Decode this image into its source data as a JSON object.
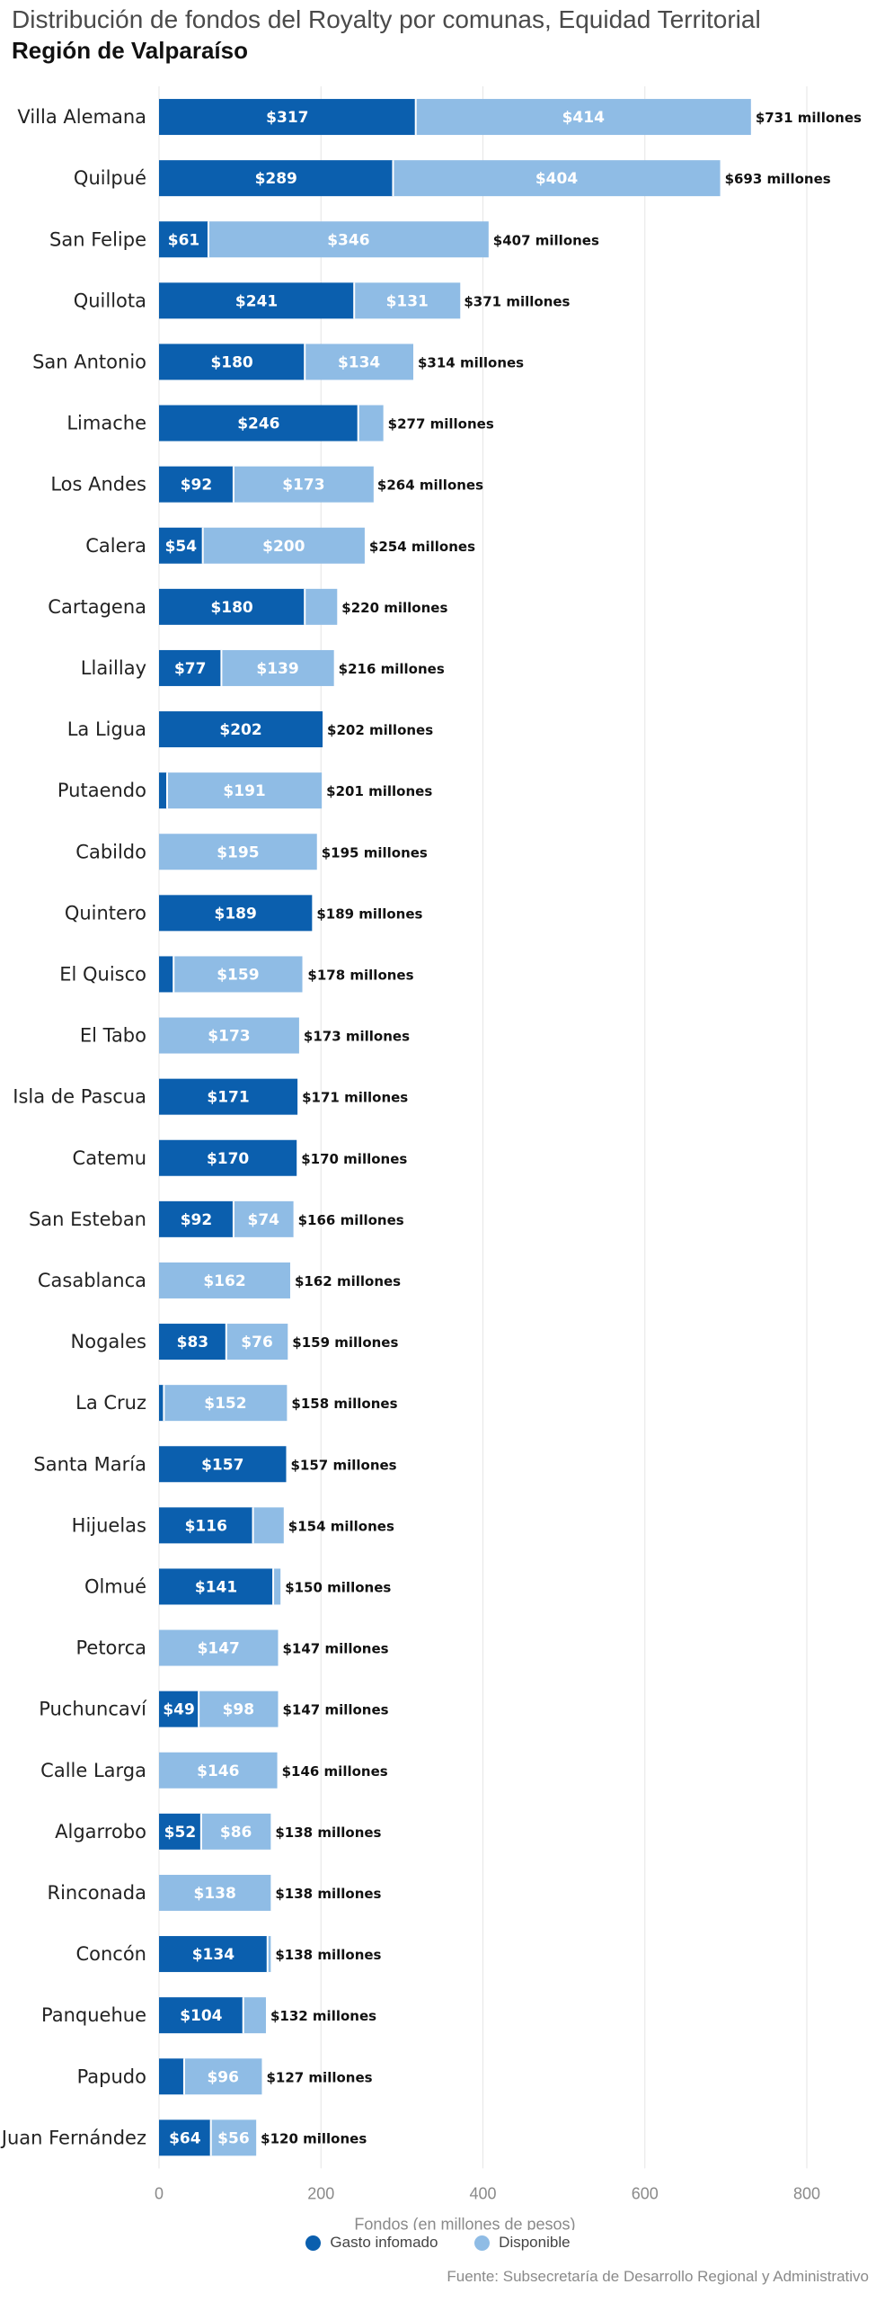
{
  "title": "Distribución de fondos del Royalty por comunas, Equidad Territorial",
  "subtitle": "Región de Valparaíso",
  "source": "Fuente: Subsecretaría de Desarrollo Regional y Administrativo",
  "colors": {
    "gasto": "#0b5fae",
    "disponible": "#8fbce5",
    "grid": "#e6e6e6"
  },
  "legend": [
    {
      "label": "Gasto infomado",
      "color": "#0b5fae"
    },
    {
      "label": "Disponible",
      "color": "#8fbce5"
    }
  ],
  "chart_data": {
    "type": "bar",
    "orientation": "horizontal",
    "stacked": true,
    "title": "Distribución de fondos del Royalty por comunas, Equidad Territorial",
    "subtitle": "Región de Valparaíso",
    "xlabel": "Fondos (en millones de pesos)",
    "xlim": [
      0,
      800
    ],
    "xticks": [
      0,
      200,
      400,
      600,
      800
    ],
    "grid": true,
    "legend_position": "bottom",
    "categories": [
      "Villa Alemana",
      "Quilpué",
      "San Felipe",
      "Quillota",
      "San Antonio",
      "Limache",
      "Los Andes",
      "Calera",
      "Cartagena",
      "Llaillay",
      "La Ligua",
      "Putaendo",
      "Cabildo",
      "Quintero",
      "El Quisco",
      "El Tabo",
      "Isla de Pascua",
      "Catemu",
      "San Esteban",
      "Casablanca",
      "Nogales",
      "La Cruz",
      "Santa María",
      "Hijuelas",
      "Olmué",
      "Petorca",
      "Puchuncaví",
      "Calle Larga",
      "Algarrobo",
      "Rinconada",
      "Concón",
      "Panquehue",
      "Papudo",
      "Juan Fernández"
    ],
    "series": [
      {
        "name": "Gasto infomado",
        "values": [
          317,
          289,
          61,
          241,
          180,
          246,
          92,
          54,
          180,
          77,
          202,
          10,
          0,
          189,
          18,
          0,
          171,
          170,
          92,
          0,
          83,
          6,
          157,
          116,
          141,
          0,
          49,
          0,
          52,
          0,
          134,
          104,
          31,
          64
        ],
        "labels": [
          "$317",
          "$289",
          "$61",
          "$241",
          "$180",
          "$246",
          "$92",
          "$54",
          "$180",
          "$77",
          "$202",
          "",
          "",
          "$189",
          "",
          "",
          "$171",
          "$170",
          "$92",
          "",
          "$83",
          "",
          "$157",
          "$116",
          "$141",
          "",
          "$49",
          "",
          "$52",
          "",
          "$134",
          "$104",
          "",
          "$64"
        ]
      },
      {
        "name": "Disponible",
        "values": [
          414,
          404,
          346,
          131,
          134,
          31,
          173,
          200,
          40,
          139,
          0,
          191,
          195,
          0,
          159,
          173,
          0,
          0,
          74,
          162,
          76,
          152,
          0,
          38,
          9,
          147,
          98,
          146,
          86,
          138,
          4,
          28,
          96,
          56
        ],
        "labels": [
          "$414",
          "$404",
          "$346",
          "$131",
          "$134",
          "",
          "$173",
          "$200",
          "",
          "$139",
          "",
          "$191",
          "$195",
          "",
          "$159",
          "$173",
          "",
          "",
          "$74",
          "$162",
          "$76",
          "$152",
          "",
          "",
          "",
          "$147",
          "$98",
          "$146",
          "$86",
          "$138",
          "",
          "",
          "$96",
          "$56"
        ]
      }
    ],
    "totals": [
      731,
      693,
      407,
      371,
      314,
      277,
      264,
      254,
      220,
      216,
      202,
      201,
      195,
      189,
      178,
      173,
      171,
      170,
      166,
      162,
      159,
      158,
      157,
      154,
      150,
      147,
      147,
      146,
      138,
      138,
      138,
      132,
      127,
      120
    ],
    "total_labels": [
      "$731 millones",
      "$693 millones",
      "$407 millones",
      "$371 millones",
      "$314 millones",
      "$277 millones",
      "$264 millones",
      "$254 millones",
      "$220 millones",
      "$216 millones",
      "$202 millones",
      "$201 millones",
      "$195 millones",
      "$189 millones",
      "$178 millones",
      "$173 millones",
      "$171 millones",
      "$170 millones",
      "$166 millones",
      "$162 millones",
      "$159 millones",
      "$158 millones",
      "$157 millones",
      "$154 millones",
      "$150 millones",
      "$147 millones",
      "$147 millones",
      "$146 millones",
      "$138 millones",
      "$138 millones",
      "$138 millones",
      "$132 millones",
      "$127 millones",
      "$120 millones"
    ]
  }
}
